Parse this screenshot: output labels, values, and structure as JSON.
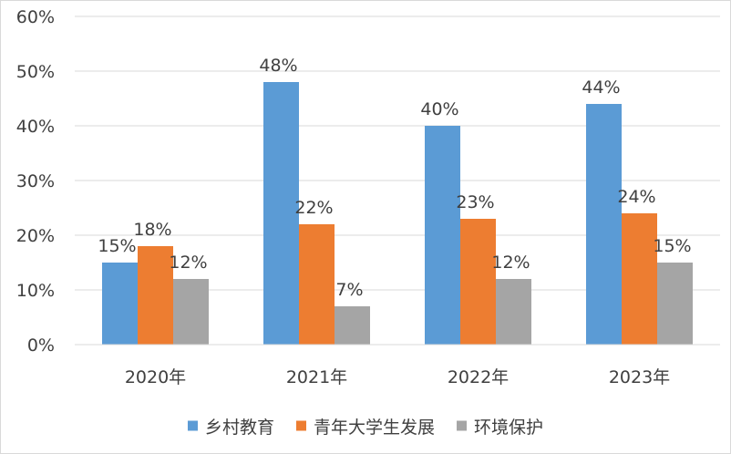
{
  "chart_data": {
    "type": "bar",
    "categories": [
      "2020年",
      "2021年",
      "2022年",
      "2023年"
    ],
    "series": [
      {
        "name": "乡村教育",
        "color": "#5B9BD5",
        "values": [
          15,
          48,
          40,
          44
        ],
        "labels": [
          "15%",
          "48%",
          "40%",
          "44%"
        ]
      },
      {
        "name": "青年大学生发展",
        "color": "#ED7D31",
        "values": [
          18,
          22,
          23,
          24
        ],
        "labels": [
          "18%",
          "22%",
          "23%",
          "24%"
        ]
      },
      {
        "name": "环境保护",
        "color": "#A5A5A5",
        "values": [
          12,
          7,
          12,
          15
        ],
        "labels": [
          "12%",
          "7%",
          "12%",
          "15%"
        ]
      }
    ],
    "y_ticks": [
      "0%",
      "10%",
      "20%",
      "30%",
      "40%",
      "50%",
      "60%"
    ],
    "ylim": [
      0,
      60
    ],
    "grid": true,
    "legend_position": "bottom"
  }
}
